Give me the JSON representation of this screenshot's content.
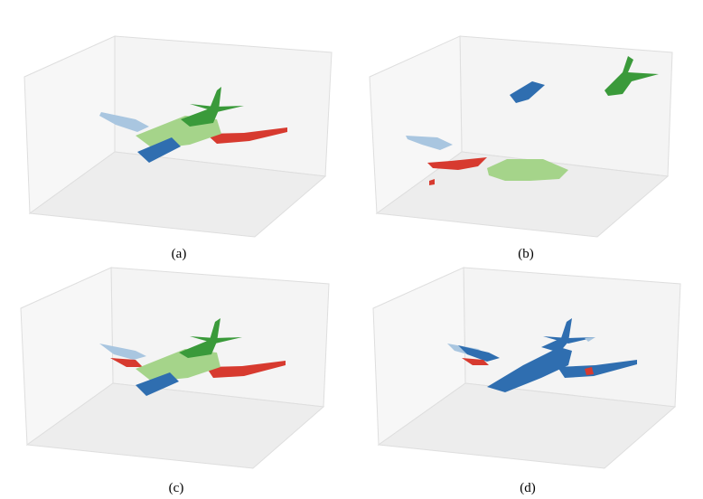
{
  "figure": {
    "panels": [
      {
        "caption": "(a)"
      },
      {
        "caption": "(b)"
      },
      {
        "caption": "(c)"
      },
      {
        "caption": "(d)"
      }
    ]
  },
  "colors": {
    "dark_blue": "#2f6eb0",
    "light_blue": "#a9c6e0",
    "dark_green": "#3a9a3a",
    "light_green": "#a5d48a",
    "red": "#d73a2f",
    "pane_fill": "#f2f2f2",
    "pane_edge": "#d6d6d6"
  }
}
